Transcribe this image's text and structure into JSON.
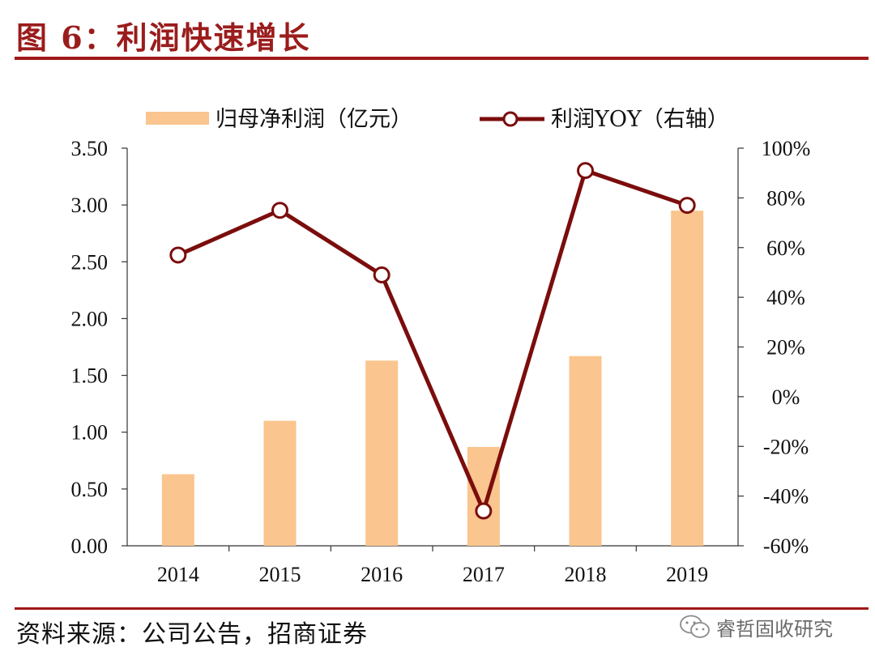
{
  "header": {
    "title": "图 6：利润快速增长"
  },
  "footer": {
    "source": "资料来源：公司公告，招商证券",
    "watermark": "睿哲固收研究"
  },
  "colors": {
    "bar": "#fac58e",
    "line": "#7b0d0d",
    "marker_fill": "#ffffff",
    "rule": "#a01818",
    "axis": "#333333"
  },
  "chart_data": {
    "type": "bar",
    "categories": [
      "2014",
      "2015",
      "2016",
      "2017",
      "2018",
      "2019"
    ],
    "series": [
      {
        "name": "归母净利润（亿元）",
        "type": "bar",
        "axis": "left",
        "values": [
          0.63,
          1.1,
          1.63,
          0.87,
          1.67,
          2.95
        ]
      },
      {
        "name": "利润YOY（右轴）",
        "type": "line",
        "axis": "right",
        "values": [
          57,
          75,
          49,
          -46,
          91,
          77
        ]
      }
    ],
    "y_left": {
      "lim": [
        0,
        3.5
      ],
      "ticks": [
        "0.00",
        "0.50",
        "1.00",
        "1.50",
        "2.00",
        "2.50",
        "3.00",
        "3.50"
      ]
    },
    "y_right": {
      "lim": [
        -60,
        100
      ],
      "ticks": [
        "-60%",
        "-40%",
        "-20%",
        "0%",
        "20%",
        "40%",
        "60%",
        "80%",
        "100%"
      ]
    },
    "legend_position": "top",
    "grid": false
  }
}
